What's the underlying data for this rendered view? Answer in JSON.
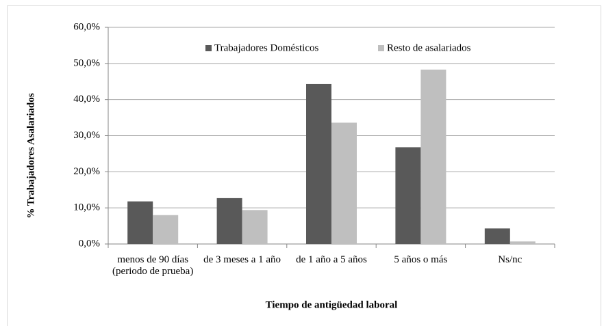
{
  "chart_data": {
    "type": "bar",
    "y_label": "% Trabajadores Asalariados",
    "x_label": "Tiempo de antigüedad laboral",
    "categories": [
      "menos de 90 días (periodo de prueba)",
      "de 3 meses a 1 año",
      "de 1 año a 5 años",
      "5 años o más",
      "Ns/nc"
    ],
    "series": [
      {
        "name": "Trabajadores Domésticos",
        "color": "#595959",
        "values": [
          11.8,
          12.7,
          44.3,
          26.8,
          4.3
        ]
      },
      {
        "name": "Resto de asalariados",
        "color": "#bfbfbf",
        "values": [
          8.0,
          9.4,
          33.6,
          48.3,
          0.7
        ]
      }
    ],
    "ylim": [
      0,
      60
    ],
    "yticks": [
      {
        "value": 0,
        "label": "0,0%"
      },
      {
        "value": 10,
        "label": "10,0%"
      },
      {
        "value": 20,
        "label": "20,0%"
      },
      {
        "value": 30,
        "label": "30,0%"
      },
      {
        "value": 40,
        "label": "40,0%"
      },
      {
        "value": 50,
        "label": "50,0%"
      },
      {
        "value": 60,
        "label": "60,0%"
      }
    ],
    "grid": true
  }
}
